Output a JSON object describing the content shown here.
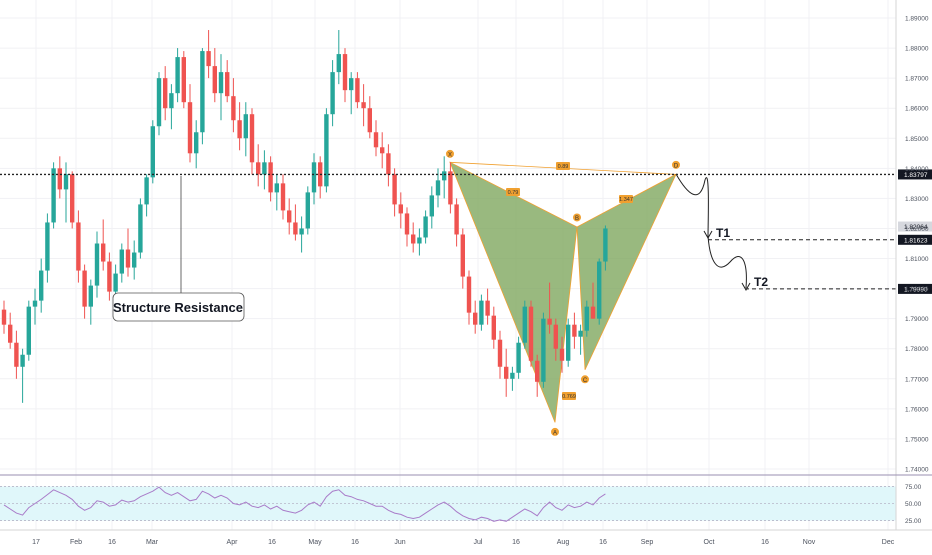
{
  "chart_data": {
    "type": "candlestick",
    "title": "",
    "colors": {
      "up": "#26a69a",
      "down": "#ef5350",
      "pattern_fill": "#7fa85f",
      "pattern_line": "#f0a030",
      "rsi_line": "#a97cc9",
      "rsi_band": "#e0f7fa"
    },
    "price_axis": {
      "min": 1.74,
      "max": 1.89,
      "ticks": [
        "1.89000",
        "1.88000",
        "1.87000",
        "1.86000",
        "1.85000",
        "1.84000",
        "1.83000",
        "1.82000",
        "1.81000",
        "1.80000",
        "1.79000",
        "1.78000",
        "1.77000",
        "1.76000",
        "1.75000",
        "1.74000"
      ]
    },
    "time_axis": {
      "labels": [
        "17",
        "Feb",
        "16",
        "Mar",
        "Apr",
        "16",
        "May",
        "16",
        "Jun",
        "Jul",
        "16",
        "Aug",
        "16",
        "Sep",
        "Oct",
        "16",
        "Nov",
        "Dec"
      ]
    },
    "candles": [
      [
        1.793,
        1.796,
        1.785,
        1.788
      ],
      [
        1.788,
        1.792,
        1.78,
        1.782
      ],
      [
        1.782,
        1.786,
        1.77,
        1.774
      ],
      [
        1.774,
        1.78,
        1.762,
        1.778
      ],
      [
        1.778,
        1.796,
        1.776,
        1.794
      ],
      [
        1.794,
        1.8,
        1.788,
        1.796
      ],
      [
        1.796,
        1.81,
        1.792,
        1.806
      ],
      [
        1.806,
        1.825,
        1.802,
        1.822
      ],
      [
        1.822,
        1.842,
        1.82,
        1.84
      ],
      [
        1.84,
        1.844,
        1.83,
        1.833
      ],
      [
        1.833,
        1.842,
        1.822,
        1.838
      ],
      [
        1.838,
        1.839,
        1.82,
        1.822
      ],
      [
        1.822,
        1.826,
        1.802,
        1.806
      ],
      [
        1.806,
        1.808,
        1.79,
        1.794
      ],
      [
        1.794,
        1.803,
        1.788,
        1.801
      ],
      [
        1.801,
        1.819,
        1.797,
        1.815
      ],
      [
        1.815,
        1.823,
        1.806,
        1.809
      ],
      [
        1.809,
        1.812,
        1.796,
        1.799
      ],
      [
        1.799,
        1.808,
        1.794,
        1.805
      ],
      [
        1.805,
        1.815,
        1.802,
        1.813
      ],
      [
        1.813,
        1.82,
        1.804,
        1.807
      ],
      [
        1.807,
        1.816,
        1.803,
        1.812
      ],
      [
        1.812,
        1.83,
        1.81,
        1.828
      ],
      [
        1.828,
        1.838,
        1.824,
        1.837
      ],
      [
        1.837,
        1.856,
        1.835,
        1.854
      ],
      [
        1.854,
        1.872,
        1.851,
        1.87
      ],
      [
        1.87,
        1.874,
        1.856,
        1.86
      ],
      [
        1.86,
        1.868,
        1.853,
        1.865
      ],
      [
        1.865,
        1.88,
        1.862,
        1.877
      ],
      [
        1.877,
        1.879,
        1.86,
        1.862
      ],
      [
        1.862,
        1.868,
        1.842,
        1.845
      ],
      [
        1.845,
        1.856,
        1.84,
        1.852
      ],
      [
        1.852,
        1.88,
        1.848,
        1.879
      ],
      [
        1.879,
        1.886,
        1.87,
        1.874
      ],
      [
        1.874,
        1.88,
        1.862,
        1.865
      ],
      [
        1.865,
        1.878,
        1.856,
        1.872
      ],
      [
        1.872,
        1.876,
        1.862,
        1.864
      ],
      [
        1.864,
        1.87,
        1.852,
        1.856
      ],
      [
        1.856,
        1.862,
        1.846,
        1.85
      ],
      [
        1.85,
        1.862,
        1.844,
        1.858
      ],
      [
        1.858,
        1.86,
        1.838,
        1.842
      ],
      [
        1.842,
        1.848,
        1.834,
        1.838
      ],
      [
        1.838,
        1.846,
        1.833,
        1.842
      ],
      [
        1.842,
        1.844,
        1.829,
        1.832
      ],
      [
        1.832,
        1.838,
        1.826,
        1.835
      ],
      [
        1.835,
        1.838,
        1.823,
        1.826
      ],
      [
        1.826,
        1.83,
        1.818,
        1.822
      ],
      [
        1.822,
        1.828,
        1.816,
        1.818
      ],
      [
        1.818,
        1.824,
        1.812,
        1.82
      ],
      [
        1.82,
        1.834,
        1.818,
        1.832
      ],
      [
        1.832,
        1.845,
        1.828,
        1.842
      ],
      [
        1.842,
        1.844,
        1.83,
        1.834
      ],
      [
        1.834,
        1.86,
        1.832,
        1.858
      ],
      [
        1.858,
        1.876,
        1.854,
        1.872
      ],
      [
        1.872,
        1.886,
        1.868,
        1.878
      ],
      [
        1.878,
        1.88,
        1.862,
        1.866
      ],
      [
        1.866,
        1.872,
        1.858,
        1.87
      ],
      [
        1.87,
        1.872,
        1.86,
        1.862
      ],
      [
        1.862,
        1.868,
        1.854,
        1.86
      ],
      [
        1.86,
        1.864,
        1.85,
        1.852
      ],
      [
        1.852,
        1.856,
        1.844,
        1.847
      ],
      [
        1.847,
        1.852,
        1.84,
        1.845
      ],
      [
        1.845,
        1.848,
        1.834,
        1.838
      ],
      [
        1.838,
        1.84,
        1.824,
        1.828
      ],
      [
        1.828,
        1.832,
        1.82,
        1.825
      ],
      [
        1.825,
        1.827,
        1.814,
        1.818
      ],
      [
        1.818,
        1.822,
        1.812,
        1.815
      ],
      [
        1.815,
        1.82,
        1.811,
        1.817
      ],
      [
        1.817,
        1.826,
        1.815,
        1.824
      ],
      [
        1.824,
        1.834,
        1.82,
        1.831
      ],
      [
        1.831,
        1.84,
        1.827,
        1.836
      ],
      [
        1.836,
        1.844,
        1.83,
        1.839
      ],
      [
        1.839,
        1.842,
        1.825,
        1.828
      ],
      [
        1.828,
        1.83,
        1.814,
        1.818
      ],
      [
        1.818,
        1.82,
        1.8,
        1.804
      ],
      [
        1.804,
        1.806,
        1.788,
        1.792
      ],
      [
        1.792,
        1.796,
        1.785,
        1.788
      ],
      [
        1.788,
        1.798,
        1.786,
        1.796
      ],
      [
        1.796,
        1.8,
        1.788,
        1.791
      ],
      [
        1.791,
        1.794,
        1.78,
        1.783
      ],
      [
        1.783,
        1.786,
        1.77,
        1.774
      ],
      [
        1.774,
        1.78,
        1.764,
        1.77
      ],
      [
        1.77,
        1.774,
        1.766,
        1.772
      ],
      [
        1.772,
        1.784,
        1.77,
        1.782
      ],
      [
        1.782,
        1.796,
        1.78,
        1.794
      ],
      [
        1.794,
        1.796,
        1.774,
        1.776
      ],
      [
        1.776,
        1.778,
        1.764,
        1.769
      ],
      [
        1.769,
        1.792,
        1.767,
        1.79
      ],
      [
        1.79,
        1.802,
        1.785,
        1.788
      ],
      [
        1.788,
        1.79,
        1.776,
        1.78
      ],
      [
        1.78,
        1.784,
        1.772,
        1.776
      ],
      [
        1.776,
        1.79,
        1.774,
        1.788
      ],
      [
        1.788,
        1.792,
        1.78,
        1.784
      ],
      [
        1.784,
        1.788,
        1.778,
        1.786
      ],
      [
        1.786,
        1.796,
        1.784,
        1.794
      ],
      [
        1.794,
        1.802,
        1.79,
        1.79
      ],
      [
        1.79,
        1.81,
        1.788,
        1.809
      ],
      [
        1.809,
        1.821,
        1.806,
        1.82
      ]
    ],
    "rsi": {
      "min": 25,
      "max": 75,
      "ticks": [
        "75.00",
        "50.00",
        "25.00"
      ],
      "values": [
        48,
        42,
        36,
        33,
        44,
        50,
        56,
        63,
        70,
        66,
        62,
        56,
        46,
        40,
        44,
        54,
        52,
        46,
        48,
        55,
        52,
        54,
        60,
        64,
        68,
        74,
        66,
        62,
        66,
        60,
        54,
        56,
        68,
        64,
        58,
        62,
        58,
        50,
        48,
        52,
        46,
        44,
        48,
        42,
        46,
        40,
        38,
        36,
        40,
        48,
        52,
        46,
        60,
        68,
        70,
        62,
        60,
        56,
        54,
        50,
        46,
        46,
        40,
        36,
        34,
        30,
        28,
        30,
        36,
        42,
        48,
        52,
        46,
        38,
        32,
        28,
        26,
        30,
        28,
        24,
        26,
        24,
        30,
        36,
        42,
        38,
        32,
        44,
        52,
        44,
        40,
        48,
        44,
        46,
        52,
        48,
        58,
        64
      ]
    },
    "pattern": {
      "points": [
        {
          "label": "X",
          "t": 0,
          "p": 1.842
        },
        {
          "label": "A",
          "t": 0,
          "p": 1.7555
        },
        {
          "label": "B",
          "t": 0,
          "p": 1.8205
        },
        {
          "label": "C",
          "t": 0,
          "p": 1.773
        },
        {
          "label": "D",
          "t": 0,
          "p": 1.838
        }
      ],
      "ratios": [
        "0.89",
        "0.79",
        "0.769",
        "1.347"
      ]
    },
    "levels": [
      {
        "value": 1.83797,
        "label": "1.83797",
        "style": "dotted"
      },
      {
        "value": 1.82064,
        "label": "1.82064",
        "style": "none"
      },
      {
        "value": 1.81623,
        "label": "1.81623",
        "style": "dashed",
        "name": "T1"
      },
      {
        "value": 1.7999,
        "label": "1.79990",
        "style": "dashed",
        "name": "T2"
      }
    ],
    "annotations": {
      "structure_label": "Structure Resistance"
    }
  }
}
